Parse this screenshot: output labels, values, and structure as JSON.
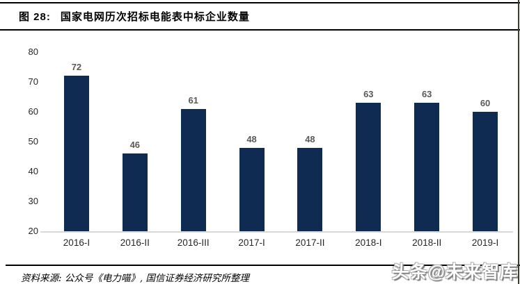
{
  "header": {
    "figure_label": "图 28:",
    "title": "国家电网历次招标电能表中标企业数量"
  },
  "chart_data": {
    "type": "bar",
    "title": "国家电网历次招标电能表中标企业数量",
    "categories": [
      "2016-I",
      "2016-II",
      "2016-III",
      "2017-I",
      "2017-II",
      "2018-I",
      "2018-II",
      "2019-I"
    ],
    "values": [
      72,
      46,
      61,
      48,
      48,
      63,
      63,
      60
    ],
    "xlabel": "",
    "ylabel": "",
    "ylim": [
      20,
      80
    ],
    "yticks": [
      20,
      30,
      40,
      50,
      60,
      70,
      80
    ],
    "grid": false,
    "legend": "none",
    "value_labels": true,
    "bar_color": "#0f2b52",
    "baseline_color": "#d9d9d9",
    "value_label_color": "#595959",
    "tick_label_color": "#262626"
  },
  "footer": {
    "source": "资料来源: 公众号《电力喵》, 国信证券经济研究所整理",
    "watermark": "头条@未来智库"
  }
}
